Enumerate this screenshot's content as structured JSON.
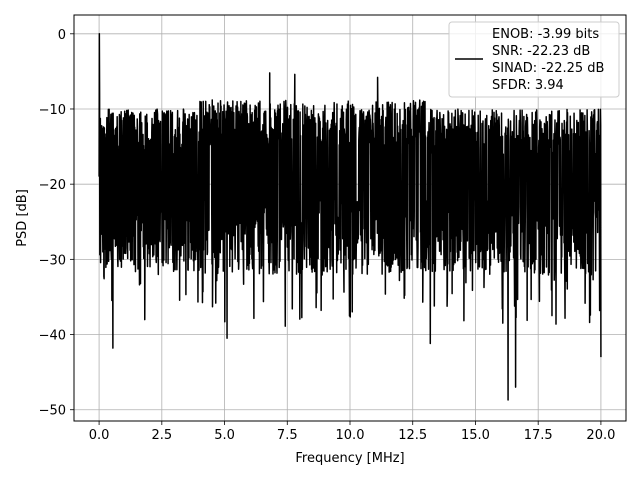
{
  "chart_data": {
    "type": "line",
    "title": "",
    "xlabel": "Frequency [MHz]",
    "ylabel": "PSD [dB]",
    "xlim": [
      -1.0,
      21.0
    ],
    "ylim": [
      -51.5,
      2.5
    ],
    "xticks": [
      0.0,
      2.5,
      5.0,
      7.5,
      10.0,
      12.5,
      15.0,
      17.5,
      20.0
    ],
    "xtick_labels": [
      "0.0",
      "2.5",
      "5.0",
      "7.5",
      "10.0",
      "12.5",
      "15.0",
      "17.5",
      "20.0"
    ],
    "yticks": [
      0,
      -10,
      -20,
      -30,
      -40,
      -50
    ],
    "ytick_labels": [
      "0",
      "−10",
      "−20",
      "−30",
      "−40",
      "−50"
    ],
    "grid": true,
    "legend_position": "top-right",
    "series": [
      {
        "name": "ENOB: -3.99 bits\nSNR: -22.23 dB\nSINAD: -22.25 dB\nSFDR: 3.94",
        "color": "#000000",
        "x_range": [
          0.0,
          20.0
        ],
        "y_typical_range": [
          -30,
          -10
        ],
        "y_max": 0.0,
        "y_min": -48.7,
        "peak_at": 0.0,
        "min_at": 16.3,
        "notable_dips": [
          {
            "x": 0.55,
            "y": -41.8
          },
          {
            "x": 5.1,
            "y": -40.5
          },
          {
            "x": 13.2,
            "y": -41.2
          },
          {
            "x": 16.3,
            "y": -48.7
          },
          {
            "x": 16.6,
            "y": -47.0
          },
          {
            "x": 20.0,
            "y": -43.0
          }
        ],
        "notable_peaks": [
          {
            "x": 0.0,
            "y": 0.0
          },
          {
            "x": 6.8,
            "y": -5.2
          },
          {
            "x": 7.8,
            "y": -5.4
          },
          {
            "x": 11.1,
            "y": -5.8
          }
        ]
      }
    ]
  }
}
